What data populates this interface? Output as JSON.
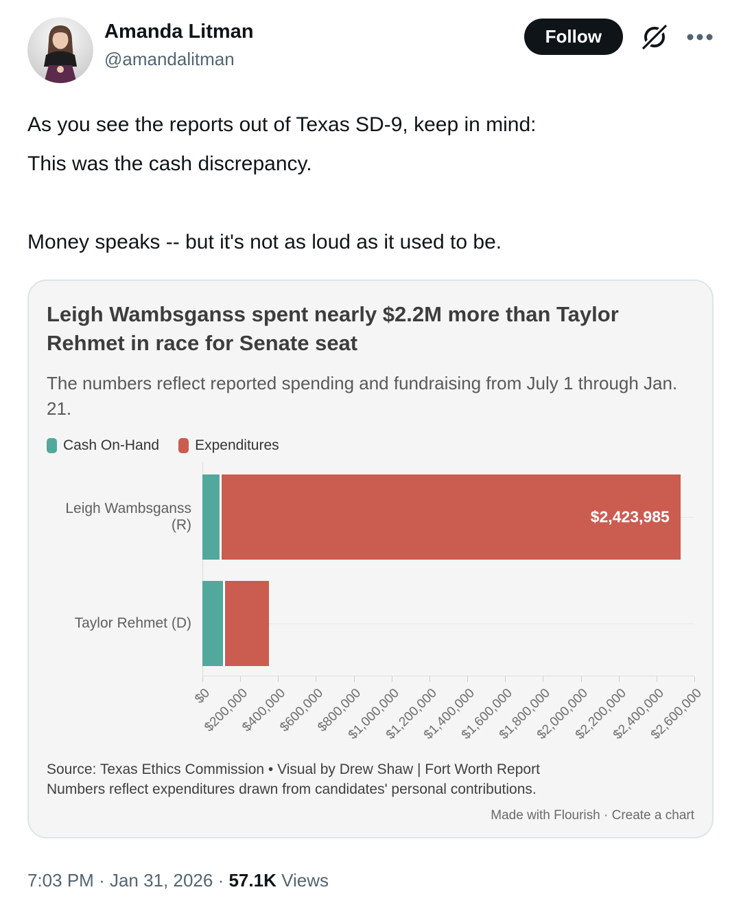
{
  "header": {
    "display_name": "Amanda Litman",
    "handle": "@amandalitman",
    "follow_label": "Follow"
  },
  "tweet": {
    "p1_line1": "As you see the reports out of Texas SD-9, keep in mind:",
    "p1_line2": "This was the cash discrepancy.",
    "p2": "Money speaks -- but it's not as loud as it used to be."
  },
  "chart_data": {
    "type": "bar",
    "orientation": "horizontal",
    "stacked": true,
    "title": "Leigh Wambsganss spent nearly $2.2M more than Taylor Rehmet in race for Senate seat",
    "subtitle": "The numbers reflect reported spending and fundraising from July 1 through Jan. 21.",
    "categories": [
      "Leigh Wambsganss (R)",
      "Taylor Rehmet (D)"
    ],
    "series": [
      {
        "name": "Cash On-Hand",
        "color": "#52A89D",
        "values": [
          92000,
          107000
        ]
      },
      {
        "name": "Expenditures",
        "color": "#CB5C50",
        "values": [
          2423985,
          233000
        ]
      }
    ],
    "bar_labels": [
      "$2,423,985",
      ""
    ],
    "xlim": [
      0,
      2600000
    ],
    "tick_step": 200000,
    "tick_labels": [
      "$0",
      "$200,000",
      "$400,000",
      "$600,000",
      "$800,000",
      "$1,000,000",
      "$1,200,000",
      "$1,400,000",
      "$1,600,000",
      "$1,800,000",
      "$2,000,000",
      "$2,200,000",
      "$2,400,000",
      "$2,600,000"
    ],
    "grid": "horizontal-row-lines",
    "legend_position": "top-left",
    "source_line1": "Source: Texas Ethics Commission • Visual by Drew Shaw | Fort Worth Report",
    "source_line2": "Numbers reflect expenditures drawn from candidates' personal contributions.",
    "attribution": "Made with Flourish · Create a chart"
  },
  "footer": {
    "time": "7:03 PM",
    "separator": "·",
    "date": "Jan 31, 2026",
    "views_count": "57.1K",
    "views_label": "Views"
  },
  "colors": {
    "teal": "#52A89D",
    "red": "#CB5C50",
    "follow_button_bg": "#0f1419",
    "card_bg": "#f5f5f5",
    "muted_text": "#536471"
  }
}
